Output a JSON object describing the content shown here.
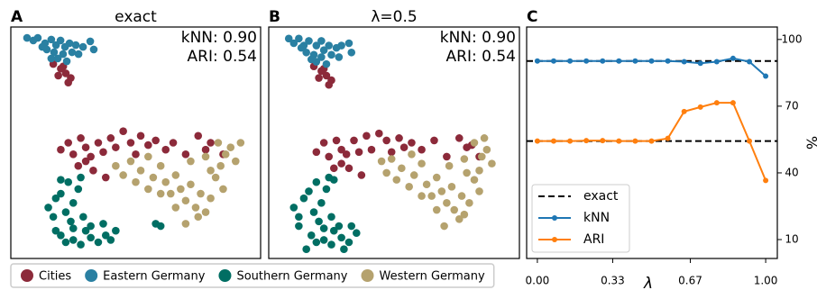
{
  "chart_data": [
    {
      "type": "scatter",
      "label": "A",
      "title": "exact",
      "annotations": [
        "kNN: 0.90",
        "ARI: 0.54"
      ],
      "xlim": [
        0,
        100
      ],
      "ylim": [
        0,
        100
      ],
      "series": [
        {
          "name": "Cities",
          "color": "#8c2a3a",
          "x": [
            17,
            20,
            22,
            24,
            19,
            23,
            21,
            20,
            23,
            25,
            28,
            30,
            32,
            35,
            37,
            40,
            42,
            45,
            48,
            50,
            52,
            55,
            58,
            62,
            65,
            70,
            75,
            78,
            80,
            85,
            33,
            38,
            30,
            27
          ],
          "y": [
            84,
            82,
            80,
            78,
            79,
            76,
            83,
            47,
            50,
            45,
            52,
            48,
            44,
            50,
            46,
            52,
            48,
            55,
            50,
            45,
            53,
            49,
            51,
            47,
            50,
            45,
            53,
            47,
            50,
            45,
            38,
            35,
            42,
            40
          ]
        },
        {
          "name": "Eastern Germany",
          "color": "#2a80a2",
          "x": [
            6.5,
            9.0,
            10.8,
            13.7,
            16.2,
            18.1,
            19.9,
            21.7,
            23.5,
            26.0,
            28.9,
            31.8,
            33.2,
            14.4,
            17.3,
            20.9,
            24.5,
            12.6,
            18.8,
            22.4,
            27.1,
            16.2
          ],
          "y": [
            95.3,
            94.2,
            95.3,
            93.0,
            94.6,
            92.2,
            94.2,
            91.4,
            93.0,
            92.2,
            91.4,
            93.8,
            90.3,
            90.3,
            89.1,
            88.3,
            89.1,
            91.4,
            86.4,
            85.2,
            88.3,
            86.4
          ]
        },
        {
          "name": "Southern Germany",
          "color": "#006e63",
          "x": [
            15,
            17,
            18,
            20,
            22,
            24,
            25,
            27,
            29,
            30,
            20,
            22,
            25,
            28,
            32,
            35,
            38,
            40,
            18,
            32,
            37,
            25,
            42,
            23,
            28,
            20,
            58,
            60
          ],
          "y": [
            22,
            18,
            26,
            28,
            20,
            16,
            24,
            30,
            18,
            12,
            10,
            7,
            8,
            6,
            9,
            7,
            10,
            8,
            12,
            14,
            15,
            13,
            12,
            33,
            35,
            34,
            15,
            14
          ]
        },
        {
          "name": "Western Germany",
          "color": "#b5a26e",
          "x": [
            42,
            45,
            48,
            50,
            52,
            55,
            57,
            60,
            62,
            64,
            66,
            68,
            70,
            72,
            74,
            76,
            78,
            80,
            82,
            84,
            86,
            88,
            90,
            92,
            85,
            80,
            75,
            72,
            78,
            55,
            60,
            66,
            70,
            83
          ],
          "y": [
            40,
            36,
            42,
            33,
            38,
            30,
            35,
            40,
            33,
            28,
            36,
            30,
            25,
            32,
            22,
            28,
            20,
            26,
            35,
            40,
            45,
            48,
            42,
            50,
            30,
            38,
            18,
            42,
            44,
            44,
            28,
            22,
            15,
            50
          ]
        }
      ]
    },
    {
      "type": "scatter",
      "label": "B",
      "title": "λ=0.5",
      "annotations": [
        "kNN: 0.90",
        "ARI: 0.54"
      ],
      "xlim": [
        0,
        100
      ],
      "ylim": [
        0,
        100
      ],
      "series": [
        {
          "color": "#8c2a3a",
          "x": [
            18,
            21,
            23,
            25,
            20,
            24,
            22,
            19,
            22,
            24,
            27,
            29,
            31,
            34,
            36,
            39,
            41,
            44,
            47,
            49,
            52,
            54,
            57,
            61,
            66,
            71,
            76,
            79,
            81,
            84,
            32,
            37,
            29,
            26
          ],
          "y": [
            83,
            81,
            79,
            77,
            78,
            75,
            82,
            46,
            50,
            44,
            51,
            47,
            45,
            51,
            46,
            53,
            47,
            54,
            51,
            46,
            52,
            48,
            50,
            47,
            51,
            44,
            52,
            48,
            49,
            44,
            39,
            36,
            41,
            39
          ]
        },
        {
          "color": "#2a80a2",
          "x": [
            8,
            10,
            12,
            14,
            16,
            19,
            21,
            22,
            24,
            27,
            29,
            32,
            33,
            15,
            18,
            21,
            25,
            13,
            19,
            23,
            28,
            17
          ],
          "y": [
            95,
            93,
            95,
            92,
            94,
            92,
            94,
            90,
            92,
            91,
            92,
            93,
            89,
            89,
            88,
            87,
            88,
            91,
            85,
            84,
            87,
            86
          ]
        },
        {
          "color": "#006e63",
          "x": [
            10,
            12,
            14,
            16,
            18,
            20,
            21,
            23,
            25,
            26,
            17,
            19,
            22,
            25,
            29,
            32,
            35,
            28,
            33,
            22,
            24,
            19,
            26,
            12,
            15,
            30
          ],
          "y": [
            22,
            18,
            26,
            29,
            20,
            16,
            24,
            30,
            18,
            12,
            10,
            7,
            8,
            6,
            9,
            7,
            11,
            14,
            14,
            13,
            35,
            33,
            34,
            14,
            4,
            4
          ]
        },
        {
          "color": "#b5a26e",
          "x": [
            45,
            47,
            49,
            51,
            53,
            56,
            58,
            61,
            63,
            65,
            67,
            69,
            71,
            73,
            74,
            77,
            78,
            80,
            82,
            84,
            85,
            87,
            89,
            86,
            84,
            79,
            76,
            72,
            78,
            57,
            61,
            67,
            70,
            82
          ],
          "y": [
            42,
            37,
            43,
            34,
            39,
            31,
            36,
            41,
            32,
            27,
            35,
            29,
            24,
            31,
            21,
            27,
            19,
            24,
            34,
            38,
            44,
            47,
            41,
            52,
            29,
            37,
            17,
            40,
            43,
            45,
            27,
            21,
            14,
            50
          ]
        }
      ]
    },
    {
      "type": "line",
      "label": "C",
      "xlabel": "λ",
      "ylabel": "%",
      "x": [
        0,
        0.0714,
        0.1429,
        0.2143,
        0.2857,
        0.3571,
        0.4286,
        0.5,
        0.5714,
        0.6429,
        0.7143,
        0.7857,
        0.8571,
        0.9286,
        1
      ],
      "xlim": [
        -0.047,
        1.051
      ],
      "ylim": [
        1.5,
        105.6
      ],
      "xticks": [
        {
          "value": 0,
          "label": "0.00"
        },
        {
          "value": 0.33,
          "label": "0.33"
        },
        {
          "value": 0.67,
          "label": "0.67"
        },
        {
          "value": 1,
          "label": "1.00"
        }
      ],
      "yticks": [
        10,
        40,
        70,
        100
      ],
      "reference_lines": {
        "name": "exact",
        "color": "#000000",
        "values": [
          90.3,
          54.3
        ]
      },
      "legend": "lower left",
      "series": [
        {
          "name": "kNN",
          "color": "#1f77b4",
          "values": [
            90.3,
            90.3,
            90.3,
            90.3,
            90.3,
            90.3,
            90.3,
            90.3,
            90.3,
            90,
            89.3,
            90,
            91.5,
            90,
            83.5
          ]
        },
        {
          "name": "ARI",
          "color": "#ff7f0e",
          "values": [
            54.3,
            54.3,
            54.3,
            54.5,
            54.5,
            54.3,
            54.3,
            54.3,
            55.5,
            67.6,
            69.6,
            71.5,
            71.5,
            54.3,
            36.6
          ]
        }
      ]
    }
  ]
}
